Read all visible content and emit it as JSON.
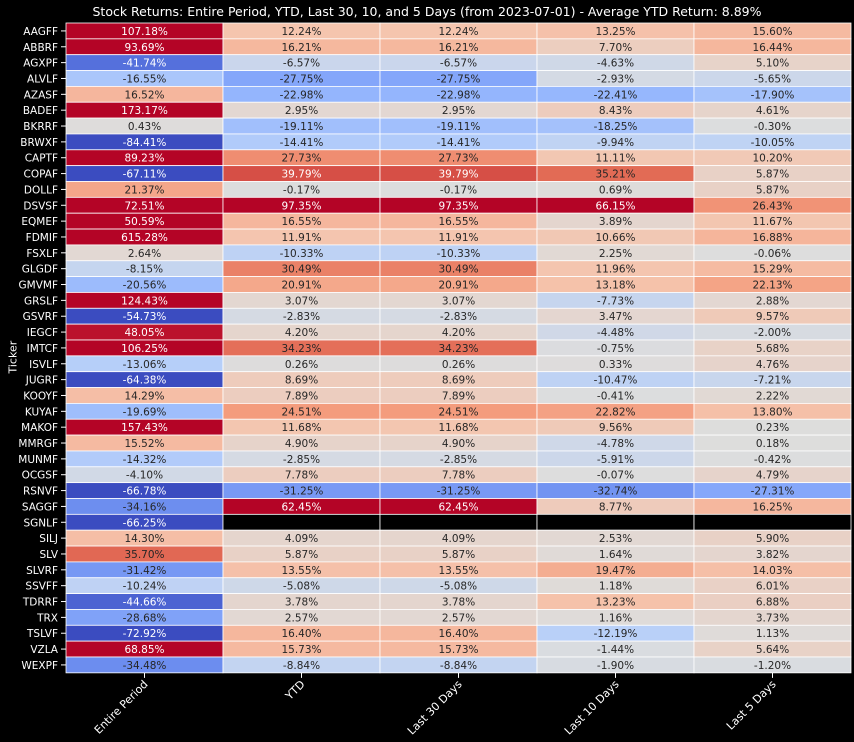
{
  "chart_data": {
    "type": "heatmap",
    "title": "Stock Returns: Entire Period, YTD, Last 30, 10, and 5 Days (from 2023-07-01) - Average YTD Return: 8.89%",
    "ylabel": "Ticker",
    "xlabel": "",
    "columns": [
      "Entire Period",
      "YTD",
      "Last 30 Days",
      "Last 10 Days",
      "Last 5 Days"
    ],
    "rows": [
      "AAGFF",
      "ABBRF",
      "AGXPF",
      "ALVLF",
      "AZASF",
      "BADEF",
      "BKRRF",
      "BRWXF",
      "CAPTF",
      "COPAF",
      "DOLLF",
      "DSVSF",
      "EQMEF",
      "FDMIF",
      "FSXLF",
      "GLGDF",
      "GMVMF",
      "GRSLF",
      "GSVRF",
      "IEGCF",
      "IMTCF",
      "ISVLF",
      "JUGRF",
      "KOOYF",
      "KUYAF",
      "MAKOF",
      "MMRGF",
      "MUNMF",
      "OCGSF",
      "RSNVF",
      "SAGGF",
      "SGNLF",
      "SILJ",
      "SLV",
      "SLVRF",
      "SSVFF",
      "TDRRF",
      "TRX",
      "TSLVF",
      "VZLA",
      "WEXPF"
    ],
    "values": [
      [
        107.18,
        12.24,
        12.24,
        13.25,
        15.6
      ],
      [
        93.69,
        16.21,
        16.21,
        7.7,
        16.44
      ],
      [
        -41.74,
        -6.57,
        -6.57,
        -4.63,
        5.1
      ],
      [
        -16.55,
        -27.75,
        -27.75,
        -2.93,
        -5.65
      ],
      [
        16.52,
        -22.98,
        -22.98,
        -22.41,
        -17.9
      ],
      [
        173.17,
        2.95,
        2.95,
        8.43,
        4.61
      ],
      [
        0.43,
        -19.11,
        -19.11,
        -18.25,
        -0.3
      ],
      [
        -84.41,
        -14.41,
        -14.41,
        -9.94,
        -10.05
      ],
      [
        89.23,
        27.73,
        27.73,
        11.11,
        10.2
      ],
      [
        -67.11,
        39.79,
        39.79,
        35.21,
        5.87
      ],
      [
        21.37,
        -0.17,
        -0.17,
        0.69,
        5.87
      ],
      [
        72.51,
        97.35,
        97.35,
        66.15,
        26.43
      ],
      [
        50.59,
        16.55,
        16.55,
        3.89,
        11.67
      ],
      [
        615.28,
        11.91,
        11.91,
        10.66,
        16.88
      ],
      [
        2.64,
        -10.33,
        -10.33,
        2.25,
        -0.06
      ],
      [
        -8.15,
        30.49,
        30.49,
        11.96,
        15.29
      ],
      [
        -20.56,
        20.91,
        20.91,
        13.18,
        22.13
      ],
      [
        124.43,
        3.07,
        3.07,
        -7.73,
        2.88
      ],
      [
        -54.73,
        -2.83,
        -2.83,
        3.47,
        9.57
      ],
      [
        48.05,
        4.2,
        4.2,
        -4.48,
        -2.0
      ],
      [
        106.25,
        34.23,
        34.23,
        -0.75,
        5.68
      ],
      [
        -13.06,
        0.26,
        0.26,
        0.33,
        4.76
      ],
      [
        -64.38,
        8.69,
        8.69,
        -10.47,
        -7.21
      ],
      [
        14.29,
        7.89,
        7.89,
        -0.41,
        2.22
      ],
      [
        -19.69,
        24.51,
        24.51,
        22.82,
        13.8
      ],
      [
        157.43,
        11.68,
        11.68,
        9.56,
        0.23
      ],
      [
        15.52,
        4.9,
        4.9,
        -4.78,
        0.18
      ],
      [
        -14.32,
        -2.85,
        -2.85,
        -5.91,
        -0.42
      ],
      [
        -4.1,
        7.78,
        7.78,
        -0.07,
        4.79
      ],
      [
        -66.78,
        -31.25,
        -31.25,
        -32.74,
        -27.31
      ],
      [
        -34.16,
        62.45,
        62.45,
        8.77,
        16.25
      ],
      [
        -66.25,
        null,
        null,
        null,
        null
      ],
      [
        14.3,
        4.09,
        4.09,
        2.53,
        5.9
      ],
      [
        35.7,
        5.87,
        5.87,
        1.64,
        3.82
      ],
      [
        -31.42,
        13.55,
        13.55,
        19.47,
        14.03
      ],
      [
        -10.24,
        -5.08,
        -5.08,
        1.18,
        6.01
      ],
      [
        -44.66,
        3.78,
        3.78,
        13.23,
        6.88
      ],
      [
        -28.68,
        2.57,
        2.57,
        1.16,
        3.73
      ],
      [
        -72.92,
        16.4,
        16.4,
        -12.19,
        1.13
      ],
      [
        68.85,
        15.73,
        15.73,
        -1.44,
        5.64
      ],
      [
        -34.48,
        -8.84,
        -8.84,
        -1.9,
        -1.2
      ]
    ],
    "labels": [
      [
        "107.18%",
        "12.24%",
        "12.24%",
        "13.25%",
        "15.60%"
      ],
      [
        "93.69%",
        "16.21%",
        "16.21%",
        "7.70%",
        "16.44%"
      ],
      [
        "-41.74%",
        "-6.57%",
        "-6.57%",
        "-4.63%",
        "5.10%"
      ],
      [
        "-16.55%",
        "-27.75%",
        "-27.75%",
        "-2.93%",
        "-5.65%"
      ],
      [
        "16.52%",
        "-22.98%",
        "-22.98%",
        "-22.41%",
        "-17.90%"
      ],
      [
        "173.17%",
        "2.95%",
        "2.95%",
        "8.43%",
        "4.61%"
      ],
      [
        "0.43%",
        "-19.11%",
        "-19.11%",
        "-18.25%",
        "-0.30%"
      ],
      [
        "-84.41%",
        "-14.41%",
        "-14.41%",
        "-9.94%",
        "-10.05%"
      ],
      [
        "89.23%",
        "27.73%",
        "27.73%",
        "11.11%",
        "10.20%"
      ],
      [
        "-67.11%",
        "39.79%",
        "39.79%",
        "35.21%",
        "5.87%"
      ],
      [
        "21.37%",
        "-0.17%",
        "-0.17%",
        "0.69%",
        "5.87%"
      ],
      [
        "72.51%",
        "97.35%",
        "97.35%",
        "66.15%",
        "26.43%"
      ],
      [
        "50.59%",
        "16.55%",
        "16.55%",
        "3.89%",
        "11.67%"
      ],
      [
        "615.28%",
        "11.91%",
        "11.91%",
        "10.66%",
        "16.88%"
      ],
      [
        "2.64%",
        "-10.33%",
        "-10.33%",
        "2.25%",
        "-0.06%"
      ],
      [
        "-8.15%",
        "30.49%",
        "30.49%",
        "11.96%",
        "15.29%"
      ],
      [
        "-20.56%",
        "20.91%",
        "20.91%",
        "13.18%",
        "22.13%"
      ],
      [
        "124.43%",
        "3.07%",
        "3.07%",
        "-7.73%",
        "2.88%"
      ],
      [
        "-54.73%",
        "-2.83%",
        "-2.83%",
        "3.47%",
        "9.57%"
      ],
      [
        "48.05%",
        "4.20%",
        "4.20%",
        "-4.48%",
        "-2.00%"
      ],
      [
        "106.25%",
        "34.23%",
        "34.23%",
        "-0.75%",
        "5.68%"
      ],
      [
        "-13.06%",
        "0.26%",
        "0.26%",
        "0.33%",
        "4.76%"
      ],
      [
        "-64.38%",
        "8.69%",
        "8.69%",
        "-10.47%",
        "-7.21%"
      ],
      [
        "14.29%",
        "7.89%",
        "7.89%",
        "-0.41%",
        "2.22%"
      ],
      [
        "-19.69%",
        "24.51%",
        "24.51%",
        "22.82%",
        "13.80%"
      ],
      [
        "157.43%",
        "11.68%",
        "11.68%",
        "9.56%",
        "0.23%"
      ],
      [
        "15.52%",
        "4.90%",
        "4.90%",
        "-4.78%",
        "0.18%"
      ],
      [
        "-14.32%",
        "-2.85%",
        "-2.85%",
        "-5.91%",
        "-0.42%"
      ],
      [
        "-4.10%",
        "7.78%",
        "7.78%",
        "-0.07%",
        "4.79%"
      ],
      [
        "-66.78%",
        "-31.25%",
        "-31.25%",
        "-32.74%",
        "-27.31%"
      ],
      [
        "-34.16%",
        "62.45%",
        "62.45%",
        "8.77%",
        "16.25%"
      ],
      [
        "-66.25%",
        "",
        "",
        "",
        ""
      ],
      [
        "14.30%",
        "4.09%",
        "4.09%",
        "2.53%",
        "5.90%"
      ],
      [
        "35.70%",
        "5.87%",
        "5.87%",
        "1.64%",
        "3.82%"
      ],
      [
        "-31.42%",
        "13.55%",
        "13.55%",
        "19.47%",
        "14.03%"
      ],
      [
        "-10.24%",
        "-5.08%",
        "-5.08%",
        "1.18%",
        "6.01%"
      ],
      [
        "-44.66%",
        "3.78%",
        "3.78%",
        "13.23%",
        "6.88%"
      ],
      [
        "-28.68%",
        "2.57%",
        "2.57%",
        "1.16%",
        "3.73%"
      ],
      [
        "-72.92%",
        "16.40%",
        "16.40%",
        "-12.19%",
        "1.13%"
      ],
      [
        "68.85%",
        "15.73%",
        "15.73%",
        "-1.44%",
        "5.64%"
      ],
      [
        "-34.48%",
        "-8.84%",
        "-8.84%",
        "-1.90%",
        "-1.20%"
      ]
    ],
    "colormap": "coolwarm",
    "color_range": [
      -50,
      50
    ],
    "grid": true,
    "legend": "none"
  }
}
